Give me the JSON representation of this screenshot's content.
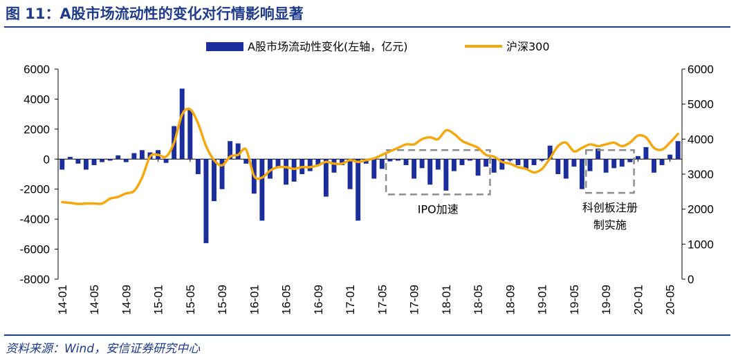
{
  "figure": {
    "title": "图 11：A股市场流动性的变化对行情影响显著",
    "source": "资料来源：Wind，安信证券研究中心"
  },
  "colors": {
    "bars": "#1b2e9c",
    "line": "#f5a80d",
    "rule": "#1f3b8c",
    "annotation_box": "#8c8c8c"
  },
  "chart_data": {
    "type": "bar+line",
    "title": "",
    "x": [
      "2014-01",
      "2014-02",
      "2014-03",
      "2014-04",
      "2014-05",
      "2014-06",
      "2014-07",
      "2014-08",
      "2014-09",
      "2014-10",
      "2014-11",
      "2014-12",
      "2015-01",
      "2015-02",
      "2015-03",
      "2015-04",
      "2015-05",
      "2015-06",
      "2015-07",
      "2015-08",
      "2015-09",
      "2015-10",
      "2015-11",
      "2015-12",
      "2016-01",
      "2016-02",
      "2016-03",
      "2016-04",
      "2016-05",
      "2016-06",
      "2016-07",
      "2016-08",
      "2016-09",
      "2016-10",
      "2016-11",
      "2016-12",
      "2017-01",
      "2017-02",
      "2017-03",
      "2017-04",
      "2017-05",
      "2017-06",
      "2017-07",
      "2017-08",
      "2017-09",
      "2017-10",
      "2017-11",
      "2017-12",
      "2018-01",
      "2018-02",
      "2018-03",
      "2018-04",
      "2018-05",
      "2018-06",
      "2018-07",
      "2018-08",
      "2018-09",
      "2018-10",
      "2018-11",
      "2018-12",
      "2019-01",
      "2019-02",
      "2019-03",
      "2019-04",
      "2019-05",
      "2019-06",
      "2019-07",
      "2019-08",
      "2019-09",
      "2019-10",
      "2019-11",
      "2019-12",
      "2020-01",
      "2020-02",
      "2020-03",
      "2020-04",
      "2020-05",
      "2020-06"
    ],
    "x_tick_labels": [
      "14-01",
      "14-05",
      "14-09",
      "15-01",
      "15-05",
      "15-09",
      "16-01",
      "16-05",
      "16-09",
      "17-01",
      "17-05",
      "17-09",
      "18-01",
      "18-05",
      "18-09",
      "19-01",
      "19-05",
      "19-09",
      "20-01",
      "20-05"
    ],
    "series": [
      {
        "name": "A股市场流动性变化(左轴，亿元)",
        "type": "bar",
        "axis": "left",
        "values": [
          -700,
          150,
          -300,
          -700,
          -400,
          -200,
          -100,
          250,
          -200,
          400,
          600,
          450,
          600,
          -250,
          2200,
          4700,
          3300,
          -1000,
          -5600,
          -2800,
          -2000,
          1200,
          1050,
          -300,
          -2300,
          -4100,
          -1300,
          -600,
          -1700,
          -1500,
          -1000,
          -800,
          -400,
          -2500,
          -900,
          -400,
          -2000,
          -4100,
          -300,
          -1300,
          -650,
          -150,
          -100,
          -400,
          -1300,
          -600,
          -1700,
          -700,
          -2100,
          -800,
          -400,
          -100,
          -1100,
          -500,
          -900,
          -700,
          -100,
          -400,
          -700,
          -400,
          -100,
          900,
          -1000,
          -1300,
          -500,
          -2000,
          -800,
          700,
          -900,
          -600,
          -500,
          -200,
          200,
          800,
          -900,
          -400,
          300,
          1200
        ]
      },
      {
        "name": "沪深300",
        "type": "line",
        "axis": "right",
        "values": [
          2200,
          2180,
          2150,
          2160,
          2160,
          2160,
          2300,
          2350,
          2450,
          2520,
          2900,
          3500,
          3550,
          3500,
          3900,
          4700,
          4850,
          4450,
          3800,
          3400,
          3250,
          3500,
          3550,
          3700,
          2950,
          2900,
          3100,
          3200,
          3200,
          3150,
          3200,
          3200,
          3250,
          3350,
          3300,
          3300,
          3400,
          3350,
          3400,
          3450,
          3550,
          3650,
          3750,
          3850,
          3850,
          4000,
          4050,
          4000,
          4250,
          4150,
          3950,
          3850,
          3750,
          3550,
          3500,
          3350,
          3300,
          3200,
          3150,
          3050,
          3150,
          3450,
          3800,
          3900,
          3650,
          3750,
          3850,
          3800,
          3850,
          3900,
          3800,
          3900,
          4100,
          4050,
          3750,
          3700,
          3900,
          4150
        ]
      }
    ],
    "y_left": {
      "range": [
        -8000,
        6000
      ],
      "ticks": [
        "6000",
        "4000",
        "2000",
        "0",
        "-2000",
        "-4000",
        "-6000",
        "-8000"
      ]
    },
    "y_right": {
      "range": [
        0,
        6000
      ],
      "ticks": [
        "6000",
        "5000",
        "4000",
        "3000",
        "2000",
        "1000",
        "0"
      ]
    },
    "legend": {
      "position": "top-center",
      "items": [
        "A股市场流动性变化(左轴，亿元)",
        "沪深300"
      ]
    },
    "annotations": [
      {
        "label": "IPO加速",
        "x_from": "2017-06",
        "x_to": "2018-06",
        "y_from": 600,
        "y_to": -2350,
        "line_style": "dashed"
      },
      {
        "label": "科创板注册",
        "label2": "制实施",
        "x_from": "2019-07",
        "x_to": "2019-12",
        "y_from": 600,
        "y_to": -2250,
        "line_style": "dashed"
      }
    ]
  }
}
